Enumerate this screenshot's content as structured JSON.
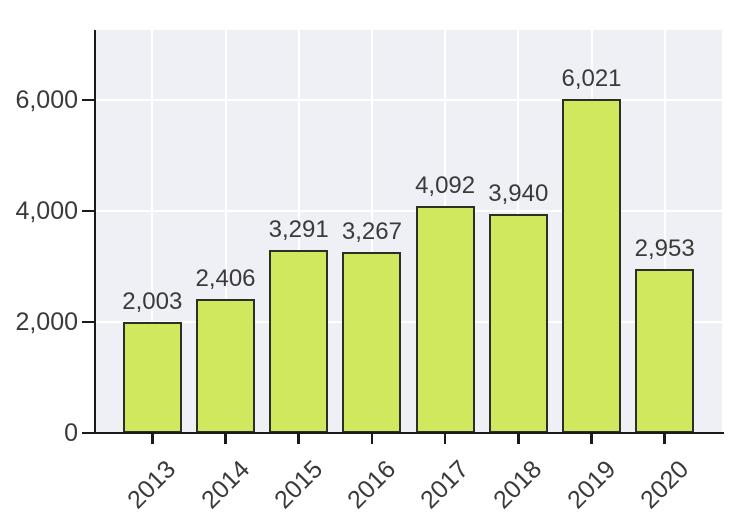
{
  "chart_data": {
    "type": "bar",
    "title": "",
    "xlabel": "",
    "ylabel": "",
    "categories": [
      "2013",
      "2014",
      "2015",
      "2016",
      "2017",
      "2018",
      "2019",
      "2020"
    ],
    "values": [
      2003,
      2406,
      3291,
      3267,
      4092,
      3940,
      6021,
      2953
    ],
    "value_labels": [
      "2,003",
      "2,406",
      "3,291",
      "3,267",
      "4,092",
      "3,940",
      "6,021",
      "2,953"
    ],
    "yticks": [
      0,
      2000,
      4000,
      6000
    ],
    "ytick_labels": [
      "0",
      "2,000",
      "4,000",
      "6,000"
    ],
    "ylim": [
      0,
      7260
    ],
    "grid": true,
    "legend": null,
    "x_tick_rotation_deg": 45,
    "colors": {
      "figure_bg": "#ffffff",
      "plot_bg": "#eef0f5",
      "grid": "#ffffff",
      "bar_fill": "#d0e85e",
      "bar_edge": "#2e2e28",
      "spine": "#1a1a1a",
      "text": "#3a3a3a"
    }
  }
}
